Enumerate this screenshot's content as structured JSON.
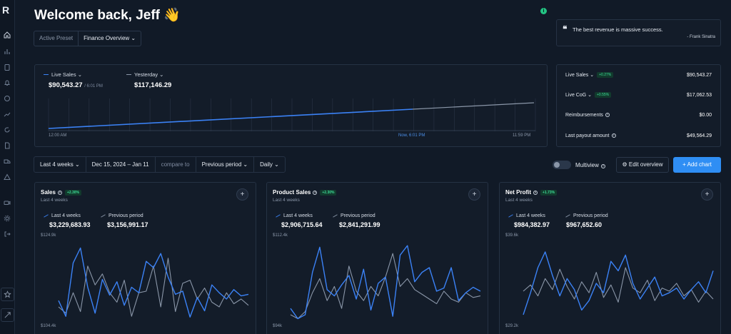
{
  "sidebar": {
    "logo": "R",
    "icons": [
      "home-icon",
      "bar-chart-icon",
      "clipboard-icon",
      "bell-icon",
      "chat-icon",
      "trend-icon",
      "refresh-icon",
      "document-icon",
      "truck-icon",
      "warning-icon",
      "video-icon",
      "gear-icon",
      "logout-icon",
      "star-icon",
      "expand-icon"
    ]
  },
  "header": {
    "welcome": "Welcome back, Jeff 👋",
    "preset_label": "Active Preset",
    "preset_value": "Finance Overview"
  },
  "quote": {
    "text": "The best revenue is massive success.",
    "author": "- Frank Sinatra"
  },
  "main_chart": {
    "live_label": "Live Sales",
    "live_value": "$90,543.27",
    "live_time": "/ 6:01 PM",
    "yesterday_label": "Yesterday",
    "yesterday_value": "$117,146.29",
    "x_start": "12:00 AM",
    "x_now": "Now, 6:01 PM",
    "x_end": "11:59 PM",
    "colors": {
      "live": "#3b82f6",
      "yesterday": "#8a96a8"
    }
  },
  "stats": [
    {
      "label": "Live Sales",
      "badge": "+0.27%",
      "value": "$90,543.27"
    },
    {
      "label": "Live CoG",
      "badge": "+0.55%",
      "value": "$17,062.53"
    },
    {
      "label": "Reimbursements",
      "badge": "",
      "value": "$0.00"
    },
    {
      "label": "Last payout amount",
      "badge": "",
      "value": "$49,564.29"
    }
  ],
  "filters": {
    "range": "Last 4 weeks",
    "dates": "Dec 15, 2024 – Jan 11",
    "compare_label": "compare to",
    "compare_value": "Previous period",
    "interval": "Daily"
  },
  "controls": {
    "multiview": "Multiview",
    "edit": "Edit overview",
    "add": "+ Add chart"
  },
  "cards": [
    {
      "title": "Sales",
      "badge": "+2.30%",
      "sub": "Last 4 weeks",
      "cur_label": "Last 4 weeks",
      "cur_value": "$3,229,683.93",
      "prev_label": "Previous period",
      "prev_value": "$3,156,991.17",
      "y_top": "$124.9k",
      "y_bottom": "$104.4k"
    },
    {
      "title": "Product Sales",
      "badge": "+2.30%",
      "sub": "Last 4 weeks",
      "cur_label": "Last 4 weeks",
      "cur_value": "$2,906,715.64",
      "prev_label": "Previous period",
      "prev_value": "$2,841,291.99",
      "y_top": "$112.4k",
      "y_bottom": "$94k"
    },
    {
      "title": "Net Profit",
      "badge": "+1.73%",
      "sub": "Last 4 weeks",
      "cur_label": "Last 4 weeks",
      "cur_value": "$984,382.97",
      "prev_label": "Previous period",
      "prev_value": "$967,652.60",
      "y_top": "$39.6k",
      "y_bottom": "$29.2k"
    }
  ]
}
